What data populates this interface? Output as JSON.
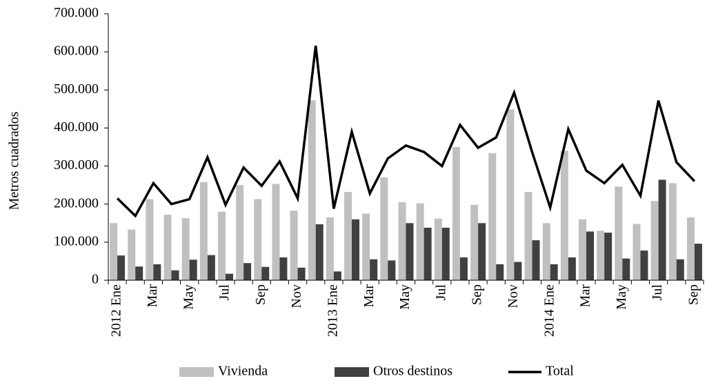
{
  "chart_data": {
    "type": "bar",
    "y_label": "Metros cuadrados",
    "categories": [
      "2012 Ene",
      null,
      "Mar",
      null,
      "May",
      null,
      "Jul",
      null,
      "Sep",
      null,
      "Nov",
      null,
      "2013 Ene",
      null,
      "Mar",
      null,
      "May",
      null,
      "Jul",
      null,
      "Sep",
      null,
      "Nov",
      null,
      "2014 Ene",
      null,
      "Mar",
      null,
      "May",
      null,
      "Jul",
      null,
      "Sep"
    ],
    "series": [
      {
        "name": "Vivienda",
        "type": "bar",
        "color": "#c0c0c0",
        "values": [
          150000,
          133000,
          213000,
          172000,
          163000,
          258000,
          180000,
          250000,
          213000,
          253000,
          183000,
          473000,
          165000,
          232000,
          175000,
          270000,
          205000,
          202000,
          162000,
          350000,
          198000,
          334000,
          449000,
          232000,
          150000,
          340000,
          160000,
          130000,
          246000,
          148000,
          208000,
          255000,
          165000
        ]
      },
      {
        "name": "Otros destinos",
        "type": "bar",
        "color": "#404040",
        "values": [
          65000,
          36000,
          42000,
          26000,
          54000,
          66000,
          17000,
          45000,
          35000,
          60000,
          33000,
          147000,
          23000,
          160000,
          55000,
          52000,
          150000,
          138000,
          138000,
          60000,
          150000,
          42000,
          48000,
          105000,
          42000,
          60000,
          128000,
          125000,
          57000,
          78000,
          264000,
          55000,
          96000
        ]
      },
      {
        "name": "Total",
        "type": "line",
        "color": "#000000",
        "values": [
          215000,
          169000,
          255000,
          200000,
          213000,
          323000,
          198000,
          296000,
          248000,
          312000,
          215000,
          616000,
          188000,
          390000,
          228000,
          320000,
          354000,
          337000,
          300000,
          408000,
          348000,
          375000,
          493000,
          336000,
          191000,
          397000,
          288000,
          255000,
          303000,
          222000,
          472000,
          310000,
          260000
        ]
      }
    ],
    "ylim": [
      0,
      700000
    ],
    "yticks": [
      0,
      {
        "value": 100000,
        "label": "100.000"
      },
      {
        "value": 200000,
        "label": "200.000"
      },
      {
        "value": 300000,
        "label": "300.000"
      },
      {
        "value": 400000,
        "label": "400.000"
      },
      {
        "value": 500000,
        "label": "500.000"
      },
      {
        "value": 600000,
        "label": "600.000"
      },
      {
        "value": 700000,
        "label": "700.000"
      }
    ],
    "grid": false
  }
}
